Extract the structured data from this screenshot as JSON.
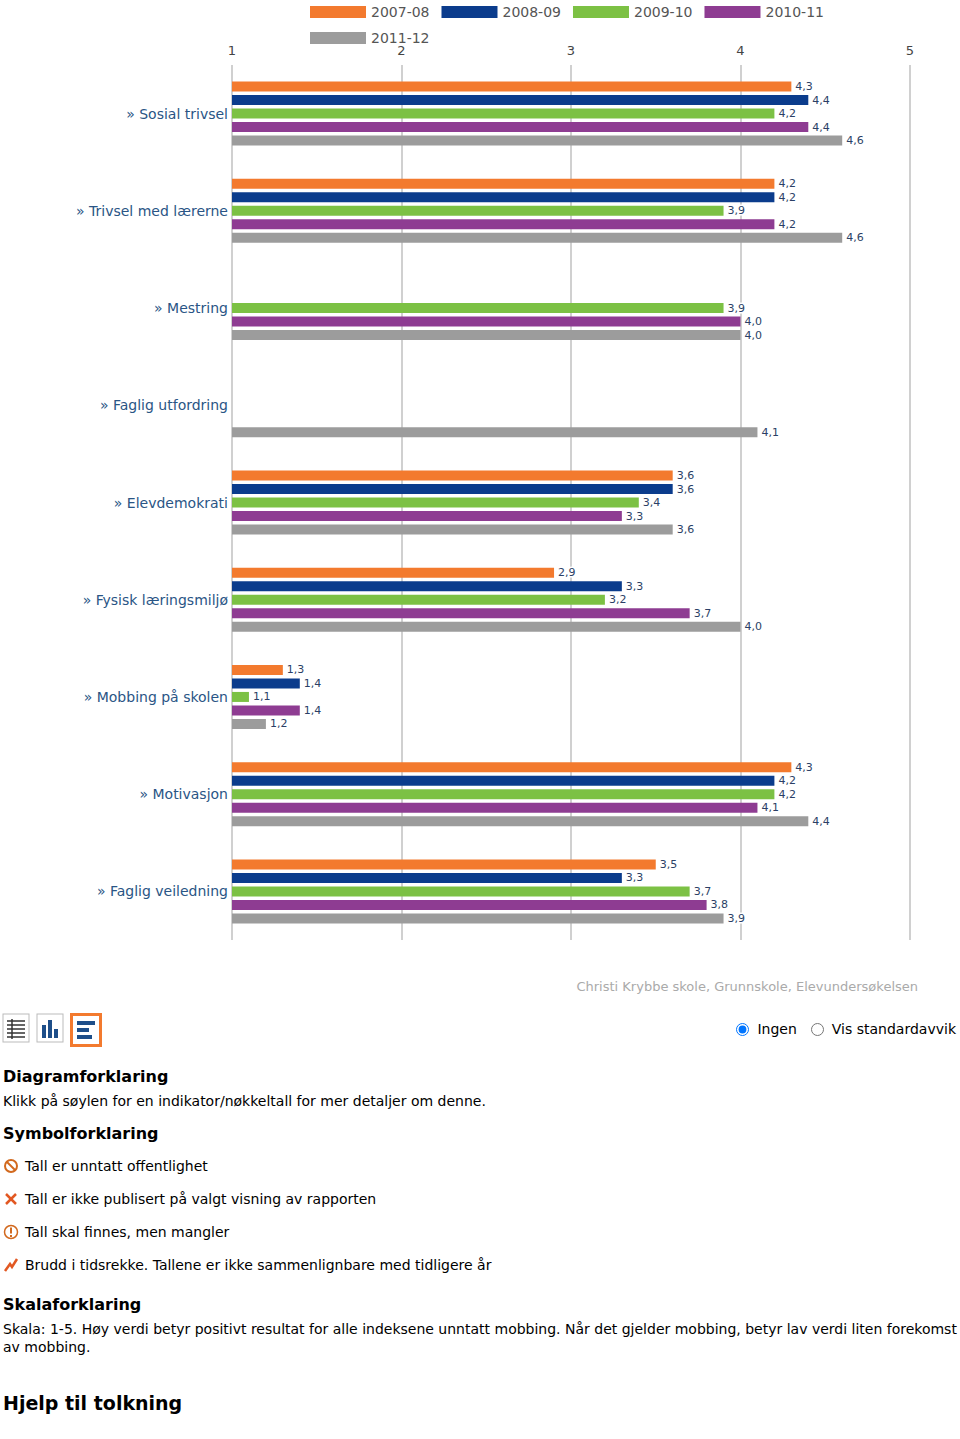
{
  "chart_data": {
    "type": "bar",
    "orientation": "horizontal",
    "categories": [
      "» Sosial trivsel",
      "» Trivsel med lærerne",
      "» Mestring",
      "» Faglig utfordring",
      "» Elevdemokrati",
      "» Fysisk læringsmiljø",
      "» Mobbing på skolen",
      "» Motivasjon",
      "» Faglig veiledning"
    ],
    "series": [
      {
        "name": "2007-08",
        "color": "#f37a2e",
        "values": [
          4.3,
          4.2,
          null,
          null,
          3.6,
          2.9,
          1.3,
          4.3,
          3.5
        ],
        "value_labels": [
          "4,3",
          "4,2",
          null,
          null,
          "3,6",
          "2,9",
          "1,3",
          "4,3",
          "3,5"
        ]
      },
      {
        "name": "2008-09",
        "color": "#0b3c8c",
        "values": [
          4.4,
          4.2,
          null,
          null,
          3.6,
          3.3,
          1.4,
          4.2,
          3.3
        ],
        "value_labels": [
          "4,4",
          "4,2",
          null,
          null,
          "3,6",
          "3,3",
          "1,4",
          "4,2",
          "3,3"
        ]
      },
      {
        "name": "2009-10",
        "color": "#7cc144",
        "values": [
          4.2,
          3.9,
          3.9,
          null,
          3.4,
          3.2,
          1.1,
          4.2,
          3.7
        ],
        "value_labels": [
          "4,2",
          "3,9",
          "3,9",
          null,
          "3,4",
          "3,2",
          "1,1",
          "4,2",
          "3,7"
        ]
      },
      {
        "name": "2010-11",
        "color": "#8e3c92",
        "values": [
          4.4,
          4.2,
          4.0,
          null,
          3.3,
          3.7,
          1.4,
          4.1,
          3.8
        ],
        "value_labels": [
          "4,4",
          "4,2",
          "4,0",
          null,
          "3,3",
          "3,7",
          "1,4",
          "4,1",
          "3,8"
        ]
      },
      {
        "name": "2011-12",
        "color": "#9c9c9c",
        "values": [
          4.6,
          4.6,
          4.0,
          4.1,
          3.6,
          4.0,
          1.2,
          4.4,
          3.9
        ],
        "value_labels": [
          "4,6",
          "4,6",
          "4,0",
          "4,1",
          "3,6",
          "4,0",
          "1,2",
          "4,4",
          "3,9"
        ]
      }
    ],
    "xlim": [
      1,
      5
    ],
    "xticks": [
      1,
      2,
      3,
      4,
      5
    ],
    "grid": true,
    "legend": "top",
    "data_labels": true,
    "annotation": "Christi Krybbe skole, Grunnskole, Elevundersøkelsen"
  },
  "page": {
    "radio": [
      "Ingen",
      "Vis standardavvik"
    ],
    "diagram": {
      "heading": "Diagramforklaring",
      "text": "Klikk på søylen for en indikator/nøkkeltall for mer detaljer om denne."
    },
    "symbols": {
      "heading": "Symbolforklaring",
      "items": [
        "Tall er unntatt offentlighet",
        "Tall er ikke publisert på valgt visning av rapporten",
        "Tall skal finnes, men mangler",
        "Brudd i tidsrekke. Tallene er ikke sammenlignbare med tidligere år"
      ]
    },
    "scale": {
      "heading": "Skalaforklaring",
      "text": "Skala: 1-5. Høy verdi betyr positivt resultat for alle indeksene unntatt mobbing. Når det gjelder mobbing, betyr lav verdi liten forekomst av mobbing."
    },
    "help_heading": "Hjelp til tolkning"
  }
}
